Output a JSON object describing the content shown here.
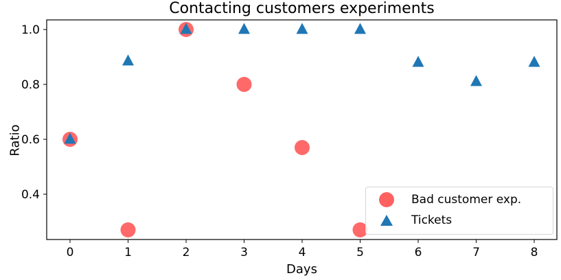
{
  "chart_data": {
    "type": "scatter",
    "title": "Contacting customers experiments",
    "xlabel": "Days",
    "ylabel": "Ratio",
    "x_ticks": [
      "0",
      "1",
      "2",
      "3",
      "4",
      "5",
      "6",
      "7",
      "8"
    ],
    "y_ticks": [
      "0.4",
      "0.6",
      "0.8",
      "1.0"
    ],
    "xlim": [
      -0.4,
      8.4
    ],
    "ylim": [
      0.235,
      1.035
    ],
    "grid": false,
    "legend_position": "lower right",
    "series": [
      {
        "name": "Bad customer exp.",
        "marker": "circle",
        "color": "#ff6161",
        "x": [
          0,
          1,
          2,
          3,
          4,
          5
        ],
        "y": [
          0.6,
          0.27,
          1.0,
          0.8,
          0.57,
          0.27
        ]
      },
      {
        "name": "Tickets",
        "marker": "triangle",
        "color": "#1f77b4",
        "x": [
          0,
          1,
          2,
          3,
          4,
          5,
          6,
          7,
          8
        ],
        "y": [
          0.6,
          0.885,
          1.0,
          1.0,
          1.0,
          1.0,
          0.88,
          0.81,
          0.88
        ]
      }
    ]
  }
}
